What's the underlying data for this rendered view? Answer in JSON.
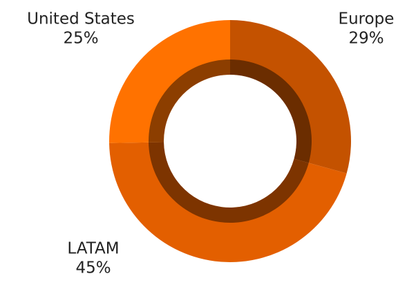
{
  "chart_data": {
    "type": "donut",
    "categories": [
      "Europe",
      "LATAM",
      "United States"
    ],
    "values": [
      29,
      45,
      25
    ],
    "value_labels": [
      "29%",
      "45%",
      "25%"
    ],
    "colors": [
      "#c45200",
      "#e35f00",
      "#ff7200"
    ]
  }
}
